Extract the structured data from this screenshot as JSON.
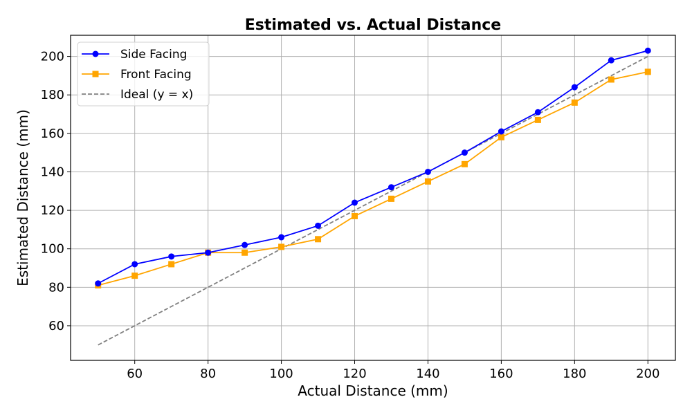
{
  "chart_data": {
    "type": "line",
    "title": "Estimated vs. Actual Distance",
    "xlabel": "Actual Distance (mm)",
    "ylabel": "Estimated Distance (mm)",
    "xlim": [
      42.5,
      207.5
    ],
    "ylim": [
      42,
      211
    ],
    "xticks": [
      60,
      80,
      100,
      120,
      140,
      160,
      180,
      200
    ],
    "yticks": [
      60,
      80,
      100,
      120,
      140,
      160,
      180,
      200
    ],
    "grid": true,
    "legend_position": "top-left",
    "x": [
      50,
      60,
      70,
      80,
      90,
      100,
      110,
      120,
      130,
      140,
      150,
      160,
      170,
      180,
      190,
      200
    ],
    "series": [
      {
        "name": "Side Facing",
        "color": "#0000ff",
        "marker": "circle",
        "style": "solid",
        "values": [
          82,
          92,
          96,
          98,
          102,
          106,
          112,
          124,
          132,
          140,
          150,
          161,
          171,
          184,
          198,
          203
        ]
      },
      {
        "name": "Front Facing",
        "color": "#ffa500",
        "marker": "square",
        "style": "solid",
        "values": [
          81,
          86,
          92,
          98,
          98,
          101,
          105,
          117,
          126,
          135,
          144,
          158,
          167,
          176,
          188,
          192
        ]
      },
      {
        "name": "Ideal (y = x)",
        "color": "#808080",
        "marker": "none",
        "style": "dashed",
        "values": [
          50,
          60,
          70,
          80,
          90,
          100,
          110,
          120,
          130,
          140,
          150,
          160,
          170,
          180,
          190,
          200
        ]
      }
    ]
  }
}
